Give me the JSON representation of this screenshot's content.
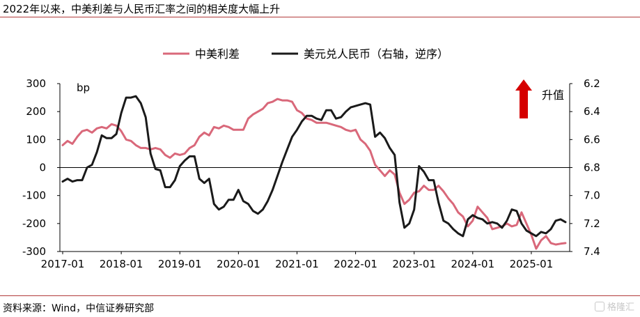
{
  "title": "2022年以来，中美利差与人民币汇率之间的相关度大幅上升",
  "source": "资料来源：Wind，中信证券研究部",
  "watermark": "格隆汇",
  "chart_data": {
    "type": "line",
    "left_axis": {
      "unit": "bp",
      "ylim": [
        -300,
        300
      ],
      "ticks": [
        -300,
        -200,
        -100,
        0,
        100,
        200,
        300
      ]
    },
    "right_axis": {
      "ylim": [
        6.2,
        7.4
      ],
      "ticks": [
        6.2,
        6.4,
        6.6,
        6.8,
        7.0,
        7.2,
        7.4
      ],
      "ticklabels": [
        "6.2",
        "6.4",
        "6.6",
        "6.8",
        "7.0",
        "7.2",
        "7.4"
      ],
      "reversed": true
    },
    "x_ticklabels": [
      "2017-01",
      "2018-01",
      "2019-01",
      "2020-01",
      "2021-01",
      "2022-01",
      "2023-01",
      "2024-01",
      "2025-01"
    ],
    "annotation": "升值",
    "annotation_color": "#d50000",
    "series": [
      {
        "name": "中美利差",
        "axis": "left",
        "color": "#d9687a",
        "values": [
          80,
          95,
          85,
          110,
          130,
          135,
          125,
          140,
          145,
          140,
          155,
          150,
          130,
          100,
          95,
          80,
          70,
          70,
          65,
          70,
          65,
          45,
          35,
          50,
          45,
          50,
          70,
          80,
          110,
          125,
          115,
          145,
          140,
          150,
          145,
          135,
          135,
          135,
          175,
          190,
          200,
          210,
          230,
          235,
          245,
          240,
          240,
          235,
          205,
          195,
          175,
          170,
          160,
          160,
          160,
          155,
          150,
          145,
          135,
          130,
          135,
          100,
          85,
          60,
          10,
          -10,
          -30,
          -10,
          -25,
          -90,
          -130,
          -115,
          -90,
          -85,
          -65,
          -80,
          -80,
          -65,
          -85,
          -110,
          -130,
          -160,
          -175,
          -210,
          -190,
          -140,
          -160,
          -180,
          -220,
          -215,
          -210,
          -200,
          -210,
          -205,
          -160,
          -200,
          -240,
          -290,
          -260,
          -245,
          -270,
          -275,
          -272,
          -270
        ]
      },
      {
        "name": "美元兑人民币（右轴，逆序）",
        "axis": "right",
        "color": "#1a1a1a",
        "values": [
          6.9,
          6.88,
          6.9,
          6.89,
          6.89,
          6.8,
          6.78,
          6.69,
          6.57,
          6.59,
          6.59,
          6.56,
          6.41,
          6.3,
          6.3,
          6.29,
          6.34,
          6.44,
          6.7,
          6.81,
          6.82,
          6.94,
          6.94,
          6.89,
          6.79,
          6.75,
          6.72,
          6.72,
          6.88,
          6.91,
          6.88,
          7.06,
          7.1,
          7.08,
          7.03,
          7.03,
          6.96,
          7.04,
          7.06,
          7.11,
          7.13,
          7.1,
          7.04,
          6.96,
          6.86,
          6.76,
          6.67,
          6.58,
          6.53,
          6.47,
          6.43,
          6.43,
          6.45,
          6.46,
          6.39,
          6.39,
          6.45,
          6.44,
          6.4,
          6.37,
          6.36,
          6.35,
          6.34,
          6.35,
          6.58,
          6.55,
          6.59,
          6.66,
          6.71,
          7.05,
          7.23,
          7.2,
          7.1,
          6.79,
          6.83,
          6.89,
          6.89,
          7.05,
          7.18,
          7.2,
          7.24,
          7.27,
          7.29,
          7.17,
          7.14,
          7.16,
          7.17,
          7.2,
          7.19,
          7.2,
          7.23,
          7.18,
          7.1,
          7.11,
          7.2,
          7.25,
          7.27,
          7.29,
          7.26,
          7.27,
          7.24,
          7.18,
          7.17,
          7.19
        ]
      }
    ]
  }
}
